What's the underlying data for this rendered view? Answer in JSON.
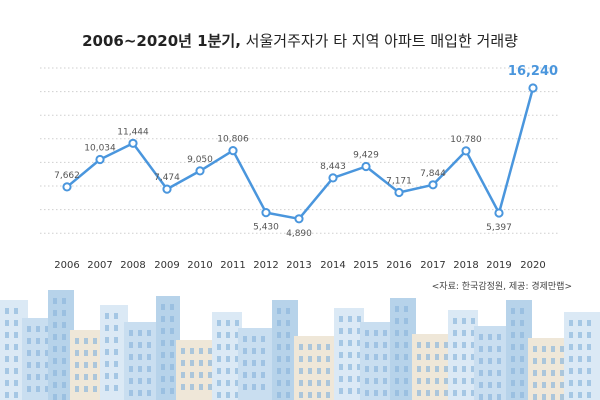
{
  "title": {
    "bold": "2006~2020년 1분기,",
    "rest": " 서울거주자가 타 지역 아파트 매입한 거래량"
  },
  "source": "<자료: 한국감정원, 제공: 경제만랩>",
  "colors": {
    "line": "#4a96dd",
    "highlight": "#4a96dd",
    "grid": "#cfcfcf",
    "city_light": "#dbe9f5",
    "city_mid": "#b7d3ea",
    "city_window": "#8fb8dd",
    "city_beige": "#efe7d8"
  },
  "chart_data": {
    "type": "line",
    "title": "2006~2020년 1분기, 서울거주자가 타 지역 아파트 매입한 거래량",
    "xlabel": "",
    "ylabel": "",
    "categories": [
      "2006",
      "2007",
      "2008",
      "2009",
      "2010",
      "2011",
      "2012",
      "2013",
      "2014",
      "2015",
      "2016",
      "2017",
      "2018",
      "2019",
      "2020"
    ],
    "values": [
      7662,
      10034,
      11444,
      7474,
      9050,
      10806,
      5430,
      4890,
      8443,
      9429,
      7171,
      7844,
      10780,
      5397,
      16240
    ],
    "value_labels": [
      "7,662",
      "10,034",
      "11,444",
      "7,474",
      "9,050",
      "10,806",
      "5,430",
      "4,890",
      "8,443",
      "9,429",
      "7,171",
      "7,844",
      "10,780",
      "5,397",
      "16,240"
    ],
    "highlight_index": 14,
    "grid": true,
    "legend": "none"
  }
}
